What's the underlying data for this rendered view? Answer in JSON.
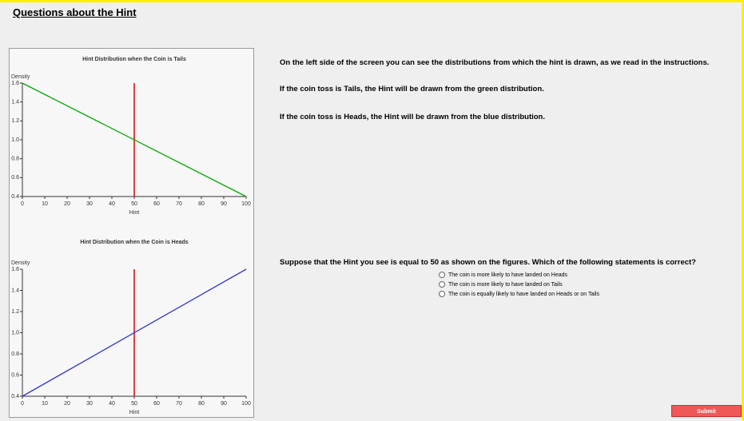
{
  "header": {
    "title": "Questions about the Hint"
  },
  "text": [
    "On the left side of the screen you can see the distributions from which the hint is drawn, as we read in the instructions.",
    "If the coin toss is Tails, the Hint will be drawn from the green distribution.",
    "If the coin toss is Heads, the Hint will be drawn from the blue distribution."
  ],
  "question": "Suppose that the Hint you see is equal to 50 as shown on the figures. Which of the following statements is correct?",
  "options": [
    "The coin is more likely to have landed on Heads",
    "The coin is more likely to have landed on Tails",
    "The coin is equally likely to have landed on Heads or on Tails"
  ],
  "submit": "Submit",
  "chart_data": [
    {
      "type": "line",
      "title": "Hint Distribution when the Coin is Tails",
      "x_label": "Hint",
      "y_label": "Density",
      "x": [
        0,
        100
      ],
      "series": [
        {
          "color": "#00aa00",
          "values": [
            1.6,
            0.4
          ]
        }
      ],
      "vline": 50,
      "vline_color": "#e00000",
      "xlim": [
        0,
        100
      ],
      "ylim": [
        0.4,
        1.6
      ],
      "xticks": [
        0,
        10,
        20,
        30,
        40,
        50,
        60,
        70,
        80,
        90,
        100
      ],
      "yticks": [
        0.4,
        0.6,
        0.8,
        {
          "value": 1,
          "label": "1.0"
        },
        1.2,
        1.4,
        1.6
      ]
    },
    {
      "type": "line",
      "title": "Hint Distribution when the Coin is Heads",
      "x_label": "Hint",
      "y_label": "Density",
      "x": [
        0,
        100
      ],
      "series": [
        {
          "color": "#3333dd",
          "values": [
            0.4,
            1.6
          ]
        }
      ],
      "vline": 50,
      "vline_color": "#e00000",
      "xlim": [
        0,
        100
      ],
      "ylim": [
        0.4,
        1.6
      ],
      "xticks": [
        0,
        10,
        20,
        30,
        40,
        50,
        60,
        70,
        80,
        90,
        100
      ],
      "yticks": [
        0.4,
        0.6,
        0.8,
        {
          "value": 1,
          "label": "1.0"
        },
        1.2,
        1.4,
        1.6
      ]
    }
  ]
}
